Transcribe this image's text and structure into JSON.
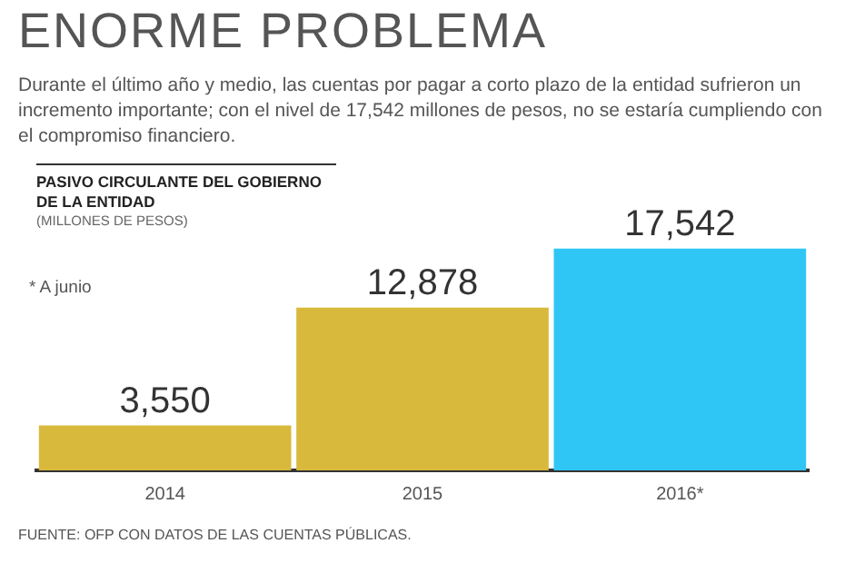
{
  "chart_data": {
    "type": "bar",
    "title": "ENORME PROBLEMA",
    "subtitle": "Durante el último año y medio, las cuentas por pagar a corto plazo de la entidad sufrieron un incremento importante; con el nivel de 17,542 millones de pesos, no se estaría cumpliendo con el compromiso financiero.",
    "ylabel": "PASIVO CIRCULANTE DEL GOBIERNO DE LA ENTIDAD",
    "categories": [
      "2014",
      "2015",
      "2016*"
    ],
    "values": [
      3550,
      12878,
      17542
    ],
    "colors": [
      "#d9b93b",
      "#d9b93b",
      "#2fc6f6"
    ],
    "value_labels": [
      "3,550",
      "12,878",
      "17,542"
    ],
    "grid": false,
    "legend": false,
    "annotations": [
      "(MILLONES DE PESOS)",
      "* A junio",
      "FUENTE: OFP CON DATOS DE LAS CUENTAS PÚBLICAS."
    ]
  }
}
